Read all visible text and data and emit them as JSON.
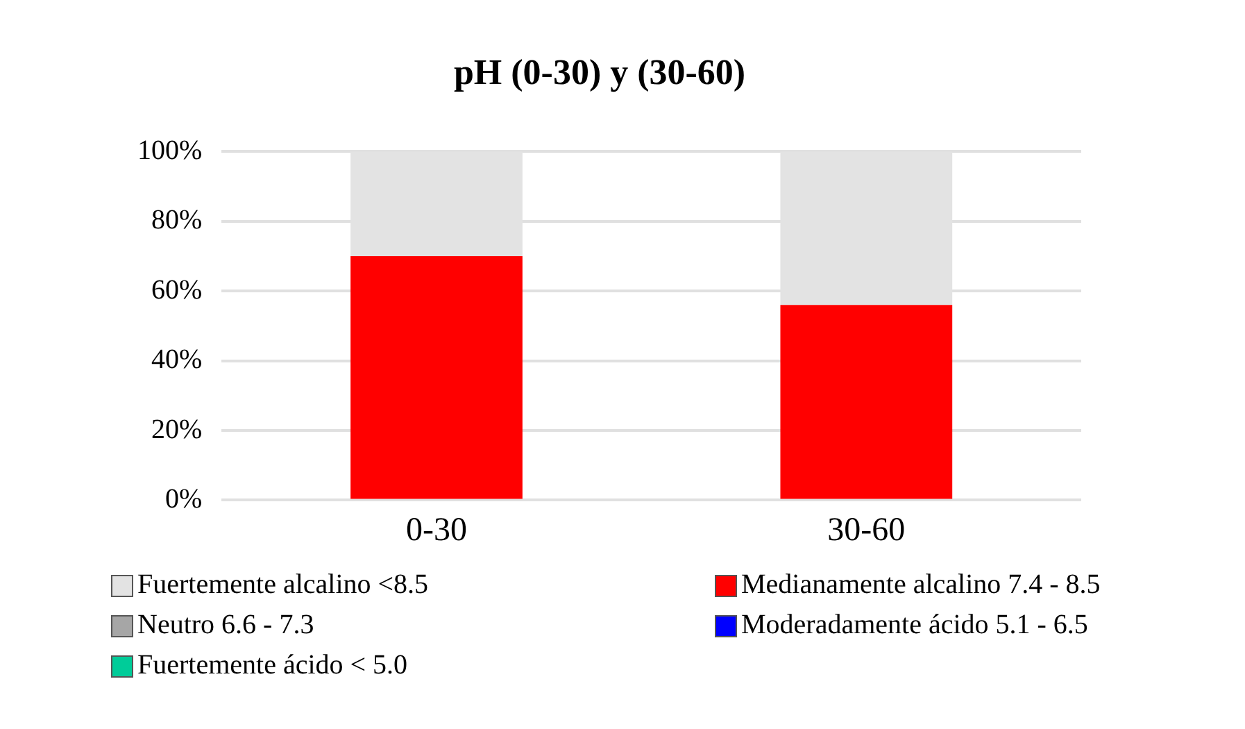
{
  "chart_data": {
    "type": "bar",
    "title": "pH (0-30) y (30-60)",
    "stacked": true,
    "categories": [
      "0-30",
      "30-60"
    ],
    "series": [
      {
        "name": "Medianamente alcalino 7.4 - 8.5",
        "color": "#ff0000",
        "values": [
          70,
          56
        ]
      },
      {
        "name": "Neutro 6.6 - 7.3",
        "color": "#a6a6a6",
        "values": [
          0,
          0
        ]
      },
      {
        "name": "Moderadamente ácido 5.1 - 6.5",
        "color": "#0000ff",
        "values": [
          0,
          0
        ]
      },
      {
        "name": "Fuertemente ácido < 5.0",
        "color": "#00cc99",
        "values": [
          0,
          0
        ]
      },
      {
        "name": "Fuertemente alcalino <8.5",
        "color": "#e3e3e3",
        "values": [
          30,
          44
        ]
      }
    ],
    "ylim": [
      0,
      100
    ],
    "yticks": [
      {
        "value": 0,
        "label": "0%"
      },
      {
        "value": 20,
        "label": "20%"
      },
      {
        "value": 40,
        "label": "40%"
      },
      {
        "value": 60,
        "label": "60%"
      },
      {
        "value": 80,
        "label": "80%"
      },
      {
        "value": 100,
        "label": "100%"
      }
    ],
    "grid": "y",
    "legend": "bottom"
  }
}
